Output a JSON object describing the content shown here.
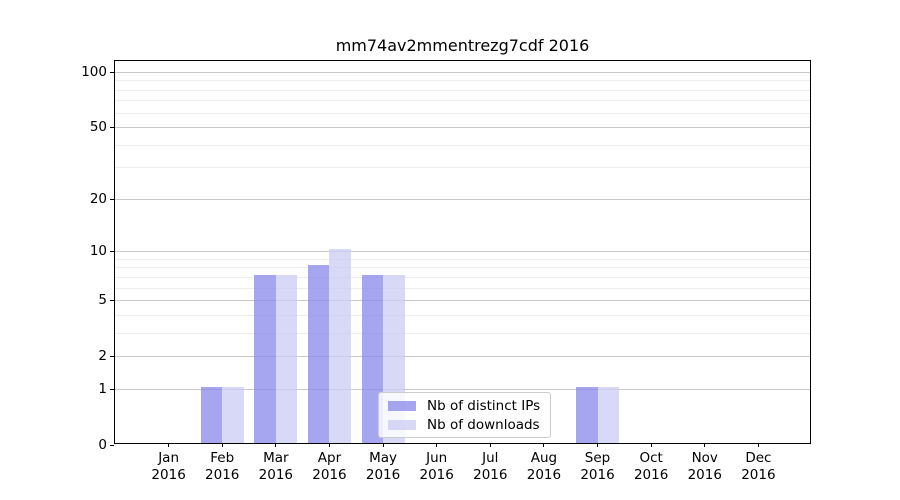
{
  "chart_data": {
    "type": "bar",
    "title": "mm74av2mmentrezg7cdf 2016",
    "x_tick_labels": [
      {
        "month": "Jan",
        "year": "2016"
      },
      {
        "month": "Feb",
        "year": "2016"
      },
      {
        "month": "Mar",
        "year": "2016"
      },
      {
        "month": "Apr",
        "year": "2016"
      },
      {
        "month": "May",
        "year": "2016"
      },
      {
        "month": "Jun",
        "year": "2016"
      },
      {
        "month": "Jul",
        "year": "2016"
      },
      {
        "month": "Aug",
        "year": "2016"
      },
      {
        "month": "Sep",
        "year": "2016"
      },
      {
        "month": "Oct",
        "year": "2016"
      },
      {
        "month": "Nov",
        "year": "2016"
      },
      {
        "month": "Dec",
        "year": "2016"
      }
    ],
    "series": [
      {
        "name": "Nb of distinct IPs",
        "color": "rgba(135,135,235,0.75)",
        "values": [
          0,
          1,
          7,
          8,
          7,
          0,
          0,
          0,
          1,
          0,
          0,
          0
        ]
      },
      {
        "name": "Nb of downloads",
        "color": "rgba(203,203,244,0.75)",
        "values": [
          0,
          1,
          7,
          10,
          7,
          0,
          0,
          0,
          1,
          0,
          0,
          0
        ]
      }
    ],
    "yscale": "log1p",
    "yticks_major": [
      0,
      1,
      2,
      5,
      10,
      20,
      50,
      100
    ],
    "yticks_minor": [
      3,
      4,
      6,
      7,
      8,
      9,
      30,
      40,
      60,
      70,
      80,
      90
    ],
    "ylim": [
      0,
      115
    ],
    "grid": "on",
    "legend_position": "lower center inside plot",
    "colors": {
      "grid_major": "#c9c9c9",
      "grid_minor": "#ededed",
      "spine": "#000000",
      "text": "#000000"
    }
  }
}
